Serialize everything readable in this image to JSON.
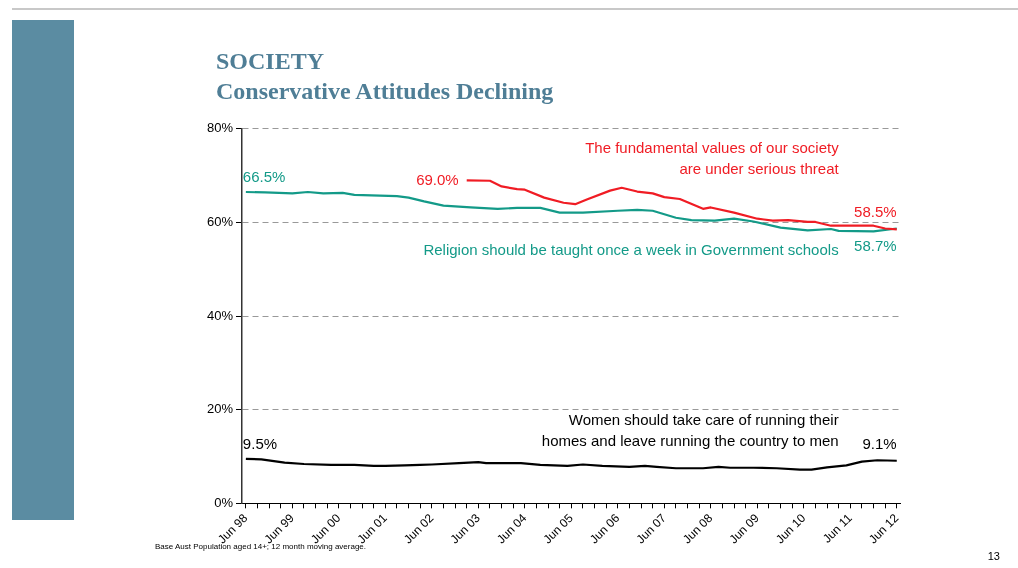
{
  "chart_data": {
    "type": "line",
    "title": "SOCIETY",
    "subtitle": "Conservative Attitudes Declining",
    "xlim": [
      "1998-05",
      "2012-07"
    ],
    "xticks": [
      {
        "value": "1998-06",
        "label": "Jun 98"
      },
      {
        "value": "1998-09",
        "label": null
      },
      {
        "value": "1998-12",
        "label": null
      },
      {
        "value": "1999-03",
        "label": null
      },
      {
        "value": "1999-06",
        "label": "Jun 99"
      },
      {
        "value": "1999-09",
        "label": null
      },
      {
        "value": "1999-12",
        "label": null
      },
      {
        "value": "2000-03",
        "label": null
      },
      {
        "value": "2000-06",
        "label": "Jun 00"
      },
      {
        "value": "2000-09",
        "label": null
      },
      {
        "value": "2000-12",
        "label": null
      },
      {
        "value": "2001-03",
        "label": null
      },
      {
        "value": "2001-06",
        "label": "Jun 01"
      },
      {
        "value": "2001-09",
        "label": null
      },
      {
        "value": "2001-12",
        "label": null
      },
      {
        "value": "2002-03",
        "label": null
      },
      {
        "value": "2002-06",
        "label": "Jun 02"
      },
      {
        "value": "2002-09",
        "label": null
      },
      {
        "value": "2002-12",
        "label": null
      },
      {
        "value": "2003-03",
        "label": null
      },
      {
        "value": "2003-06",
        "label": "Jun 03"
      },
      {
        "value": "2003-09",
        "label": null
      },
      {
        "value": "2003-12",
        "label": null
      },
      {
        "value": "2004-03",
        "label": null
      },
      {
        "value": "2004-06",
        "label": "Jun 04"
      },
      {
        "value": "2004-09",
        "label": null
      },
      {
        "value": "2004-12",
        "label": null
      },
      {
        "value": "2005-03",
        "label": null
      },
      {
        "value": "2005-06",
        "label": "Jun 05"
      },
      {
        "value": "2005-09",
        "label": null
      },
      {
        "value": "2005-12",
        "label": null
      },
      {
        "value": "2006-03",
        "label": null
      },
      {
        "value": "2006-06",
        "label": "Jun 06"
      },
      {
        "value": "2006-09",
        "label": null
      },
      {
        "value": "2006-12",
        "label": null
      },
      {
        "value": "2007-03",
        "label": null
      },
      {
        "value": "2007-06",
        "label": "Jun 07"
      },
      {
        "value": "2007-09",
        "label": null
      },
      {
        "value": "2007-12",
        "label": null
      },
      {
        "value": "2008-03",
        "label": null
      },
      {
        "value": "2008-06",
        "label": "Jun 08"
      },
      {
        "value": "2008-09",
        "label": null
      },
      {
        "value": "2008-12",
        "label": null
      },
      {
        "value": "2009-03",
        "label": null
      },
      {
        "value": "2009-06",
        "label": "Jun 09"
      },
      {
        "value": "2009-09",
        "label": null
      },
      {
        "value": "2009-12",
        "label": null
      },
      {
        "value": "2010-03",
        "label": null
      },
      {
        "value": "2010-06",
        "label": "Jun 10"
      },
      {
        "value": "2010-09",
        "label": null
      },
      {
        "value": "2010-12",
        "label": null
      },
      {
        "value": "2011-03",
        "label": null
      },
      {
        "value": "2011-06",
        "label": "Jun 11"
      },
      {
        "value": "2011-09",
        "label": null
      },
      {
        "value": "2011-12",
        "label": null
      },
      {
        "value": "2012-03",
        "label": null
      },
      {
        "value": "2012-06",
        "label": "Jun 12"
      }
    ],
    "ylim": [
      0,
      80
    ],
    "yticks": [
      {
        "value": 0,
        "label": "0%"
      },
      {
        "value": 20,
        "label": "20%"
      },
      {
        "value": 40,
        "label": "40%"
      },
      {
        "value": 60,
        "label": "60%"
      },
      {
        "value": 80,
        "label": "80%"
      }
    ],
    "grid": "y",
    "legend": false,
    "marker": "none",
    "line_style": "solid",
    "series": [
      {
        "name": "The fundamental values of our society\nare under serious threat",
        "color": "#f01c24",
        "x": [
          "2003-03",
          "2003-09",
          "2003-12",
          "2004-04",
          "2004-06",
          "2004-11",
          "2005-04",
          "2005-07",
          "2005-10",
          "2006-04",
          "2006-07",
          "2006-11",
          "2007-03",
          "2007-06",
          "2007-10",
          "2008-04",
          "2008-06",
          "2008-12",
          "2009-06",
          "2009-10",
          "2010-02",
          "2010-07",
          "2010-09",
          "2011-01",
          "2011-07",
          "2011-12",
          "2012-03",
          "2012-06"
        ],
        "values": [
          69.0,
          68.9,
          67.7,
          67.1,
          67.0,
          65.3,
          64.2,
          63.9,
          64.9,
          66.8,
          67.4,
          66.6,
          66.2,
          65.4,
          65.0,
          62.9,
          63.2,
          62.1,
          60.8,
          60.4,
          60.5,
          60.1,
          60.1,
          59.3,
          59.3,
          59.3,
          58.7,
          58.5
        ],
        "value_labels": [
          "69.0%",
          null,
          null,
          null,
          null,
          null,
          null,
          null,
          null,
          null,
          null,
          null,
          null,
          null,
          null,
          null,
          null,
          null,
          null,
          null,
          null,
          null,
          null,
          null,
          null,
          null,
          null,
          "58.5%"
        ]
      },
      {
        "name": "Religion should be taught once a week in Government schools",
        "color": "#139a88",
        "x": [
          "1998-06",
          "1998-11",
          "1999-06",
          "1999-10",
          "2000-02",
          "2000-07",
          "2000-10",
          "2001-09",
          "2001-12",
          "2002-04",
          "2002-09",
          "2003-04",
          "2003-11",
          "2004-04",
          "2004-10",
          "2005-03",
          "2005-09",
          "2006-06",
          "2006-11",
          "2007-03",
          "2007-09",
          "2008-01",
          "2008-07",
          "2008-12",
          "2009-05",
          "2009-12",
          "2010-07",
          "2011-01",
          "2011-03",
          "2011-12",
          "2012-06"
        ],
        "values": [
          66.5,
          66.4,
          66.2,
          66.5,
          66.2,
          66.3,
          65.9,
          65.6,
          65.3,
          64.5,
          63.6,
          63.2,
          62.9,
          63.1,
          63.1,
          62.1,
          62.1,
          62.5,
          62.7,
          62.5,
          61.0,
          60.5,
          60.4,
          60.8,
          60.2,
          58.9,
          58.3,
          58.6,
          58.2,
          58.1,
          58.7
        ],
        "value_labels": [
          "66.5%",
          null,
          null,
          null,
          null,
          null,
          null,
          null,
          null,
          null,
          null,
          null,
          null,
          null,
          null,
          null,
          null,
          null,
          null,
          null,
          null,
          null,
          null,
          null,
          null,
          null,
          null,
          null,
          null,
          null,
          "58.7%"
        ]
      },
      {
        "name": "Women should take care of running their\nhomes and leave running the country to men",
        "color": "#000000",
        "x": [
          "1998-06",
          "1998-10",
          "1999-04",
          "1999-09",
          "2000-04",
          "2000-10",
          "2001-03",
          "2001-06",
          "2001-11",
          "2002-03",
          "2002-06",
          "2003-01",
          "2003-06",
          "2003-08",
          "2004-05",
          "2004-10",
          "2005-05",
          "2005-09",
          "2006-02",
          "2006-09",
          "2007-01",
          "2007-04",
          "2007-09",
          "2008-04",
          "2008-08",
          "2008-11",
          "2009-05",
          "2009-11",
          "2010-05",
          "2010-08",
          "2010-12",
          "2011-05",
          "2011-09",
          "2012-01",
          "2012-06"
        ],
        "values": [
          9.5,
          9.4,
          8.7,
          8.4,
          8.2,
          8.2,
          8.0,
          8.0,
          8.1,
          8.2,
          8.3,
          8.6,
          8.8,
          8.6,
          8.6,
          8.2,
          8.0,
          8.3,
          8.0,
          7.8,
          8.0,
          7.8,
          7.5,
          7.5,
          7.8,
          7.6,
          7.6,
          7.5,
          7.2,
          7.2,
          7.7,
          8.1,
          8.9,
          9.2,
          9.1
        ],
        "value_labels": [
          "9.5%",
          null,
          null,
          null,
          null,
          null,
          null,
          null,
          null,
          null,
          null,
          null,
          null,
          null,
          null,
          null,
          null,
          null,
          null,
          null,
          null,
          null,
          null,
          null,
          null,
          null,
          null,
          null,
          null,
          null,
          null,
          null,
          null,
          null,
          "9.1%"
        ]
      }
    ],
    "annotations": [
      "Base Aust Population aged 14+; 12 month moving average.",
      "13"
    ]
  }
}
